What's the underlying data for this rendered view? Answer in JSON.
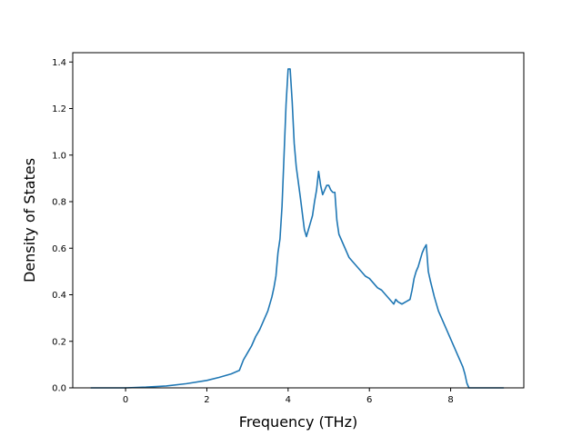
{
  "chart_data": {
    "type": "line",
    "title": "",
    "xlabel": "Frequency (THz)",
    "ylabel": "Density of States",
    "xlim": [
      -1.3,
      9.8
    ],
    "ylim": [
      0.0,
      1.44
    ],
    "xticks": [
      0,
      2,
      4,
      6,
      8
    ],
    "xtick_labels": [
      "0",
      "2",
      "4",
      "6",
      "8"
    ],
    "yticks": [
      0.0,
      0.2,
      0.4,
      0.6,
      0.8,
      1.0,
      1.2,
      1.4
    ],
    "ytick_labels": [
      "0.0",
      "0.2",
      "0.4",
      "0.6",
      "0.8",
      "1.0",
      "1.2",
      "1.4"
    ],
    "grid": false,
    "legend": "none",
    "series": [
      {
        "color": "#1f77b4",
        "x": [
          -0.85,
          0.0,
          0.5,
          1.0,
          1.5,
          2.0,
          2.3,
          2.6,
          2.8,
          2.9,
          3.0,
          3.1,
          3.2,
          3.3,
          3.4,
          3.5,
          3.6,
          3.65,
          3.7,
          3.75,
          3.8,
          3.85,
          3.9,
          3.95,
          4.0,
          4.05,
          4.1,
          4.15,
          4.2,
          4.3,
          4.4,
          4.45,
          4.5,
          4.55,
          4.6,
          4.65,
          4.7,
          4.75,
          4.8,
          4.85,
          4.9,
          4.95,
          5.0,
          5.05,
          5.1,
          5.15,
          5.2,
          5.25,
          5.3,
          5.4,
          5.5,
          5.6,
          5.7,
          5.8,
          5.9,
          6.0,
          6.1,
          6.2,
          6.3,
          6.4,
          6.5,
          6.6,
          6.65,
          6.7,
          6.8,
          6.9,
          7.0,
          7.05,
          7.1,
          7.15,
          7.2,
          7.25,
          7.3,
          7.35,
          7.4,
          7.45,
          7.5,
          7.6,
          7.7,
          7.8,
          7.9,
          8.0,
          8.1,
          8.2,
          8.3,
          8.35,
          8.4,
          8.45,
          8.5,
          8.55,
          8.6,
          8.8,
          9.0,
          9.3
        ],
        "y": [
          0.0,
          0.0,
          0.003,
          0.008,
          0.018,
          0.032,
          0.045,
          0.06,
          0.075,
          0.12,
          0.15,
          0.18,
          0.22,
          0.25,
          0.29,
          0.33,
          0.39,
          0.43,
          0.48,
          0.58,
          0.64,
          0.78,
          1.0,
          1.22,
          1.37,
          1.37,
          1.23,
          1.05,
          0.95,
          0.82,
          0.68,
          0.65,
          0.68,
          0.71,
          0.74,
          0.8,
          0.85,
          0.93,
          0.87,
          0.83,
          0.85,
          0.87,
          0.87,
          0.85,
          0.84,
          0.84,
          0.72,
          0.66,
          0.64,
          0.6,
          0.56,
          0.54,
          0.52,
          0.5,
          0.48,
          0.47,
          0.45,
          0.43,
          0.42,
          0.4,
          0.38,
          0.36,
          0.38,
          0.37,
          0.36,
          0.37,
          0.38,
          0.42,
          0.47,
          0.5,
          0.52,
          0.55,
          0.58,
          0.6,
          0.615,
          0.5,
          0.46,
          0.39,
          0.33,
          0.29,
          0.25,
          0.21,
          0.17,
          0.13,
          0.09,
          0.06,
          0.02,
          0.0,
          0.0,
          0.0,
          0.0,
          0.0,
          0.0,
          0.0
        ]
      }
    ]
  }
}
